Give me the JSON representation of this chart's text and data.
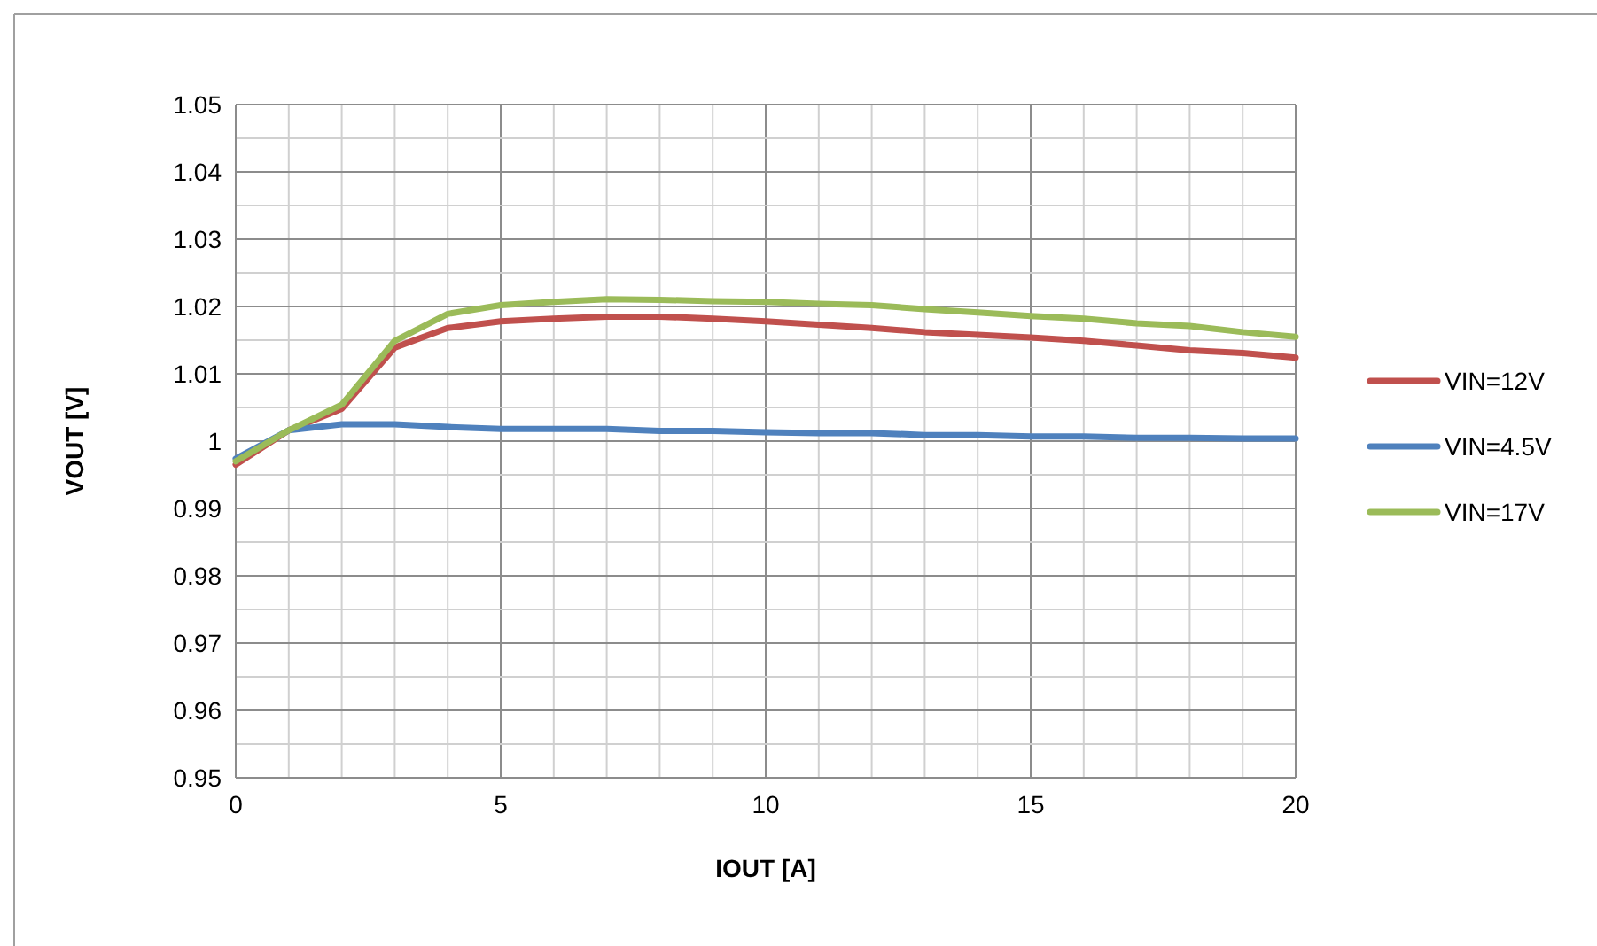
{
  "chart_data": {
    "type": "line",
    "xlabel": "IOUT [A]",
    "ylabel": "VOUT [V]",
    "x": [
      0,
      1,
      2,
      3,
      4,
      5,
      6,
      7,
      8,
      9,
      10,
      11,
      12,
      13,
      14,
      15,
      16,
      17,
      18,
      19,
      20
    ],
    "series": [
      {
        "name": "VIN=12V",
        "color": "#c0504d",
        "values": [
          0.9965,
          1.0016,
          1.0048,
          1.0139,
          1.0168,
          1.0178,
          1.0182,
          1.0185,
          1.0185,
          1.0182,
          1.0178,
          1.0173,
          1.0168,
          1.0162,
          1.0158,
          1.0154,
          1.0149,
          1.0142,
          1.0135,
          1.0131,
          1.0124
        ]
      },
      {
        "name": "VIN=4.5V",
        "color": "#4f81bd",
        "values": [
          0.9974,
          1.0016,
          1.0025,
          1.0025,
          1.0021,
          1.0018,
          1.0018,
          1.0018,
          1.0015,
          1.0015,
          1.0013,
          1.0012,
          1.0012,
          1.0009,
          1.0009,
          1.0007,
          1.0007,
          1.0005,
          1.0005,
          1.0004,
          1.0004
        ]
      },
      {
        "name": "VIN=17V",
        "color": "#9bbb59",
        "values": [
          0.997,
          1.0016,
          1.0054,
          1.0149,
          1.0189,
          1.0202,
          1.0207,
          1.0211,
          1.021,
          1.0208,
          1.0207,
          1.0204,
          1.0202,
          1.0196,
          1.0191,
          1.0186,
          1.0182,
          1.0175,
          1.0171,
          1.0162,
          1.0155
        ]
      }
    ],
    "xlim": [
      0,
      20
    ],
    "xticks": [
      0,
      {
        "value": 1,
        "label": null
      },
      {
        "value": 2,
        "label": null
      },
      {
        "value": 3,
        "label": null
      },
      {
        "value": 4,
        "label": null
      },
      5,
      {
        "value": 6,
        "label": null
      },
      {
        "value": 7,
        "label": null
      },
      {
        "value": 8,
        "label": null
      },
      {
        "value": 9,
        "label": null
      },
      10,
      {
        "value": 11,
        "label": null
      },
      {
        "value": 12,
        "label": null
      },
      {
        "value": 13,
        "label": null
      },
      {
        "value": 14,
        "label": null
      },
      15,
      {
        "value": 16,
        "label": null
      },
      {
        "value": 17,
        "label": null
      },
      {
        "value": 18,
        "label": null
      },
      {
        "value": 19,
        "label": null
      },
      20
    ],
    "ylim": [
      0.95,
      1.05
    ],
    "yticks": [
      0.95,
      {
        "value": 0.955,
        "label": null
      },
      0.96,
      {
        "value": 0.965,
        "label": null
      },
      0.97,
      {
        "value": 0.975,
        "label": null
      },
      0.98,
      {
        "value": 0.985,
        "label": null
      },
      0.99,
      {
        "value": 0.995,
        "label": null
      },
      {
        "value": 1,
        "label": "1"
      },
      {
        "value": 1.005,
        "label": null
      },
      1.01,
      {
        "value": 1.015,
        "label": null
      },
      1.02,
      {
        "value": 1.025,
        "label": null
      },
      1.03,
      {
        "value": 1.035,
        "label": null
      },
      1.04,
      {
        "value": 1.045,
        "label": null
      },
      1.05
    ],
    "grid": true,
    "legend": "right",
    "marker": "none",
    "line_style": "solid"
  }
}
